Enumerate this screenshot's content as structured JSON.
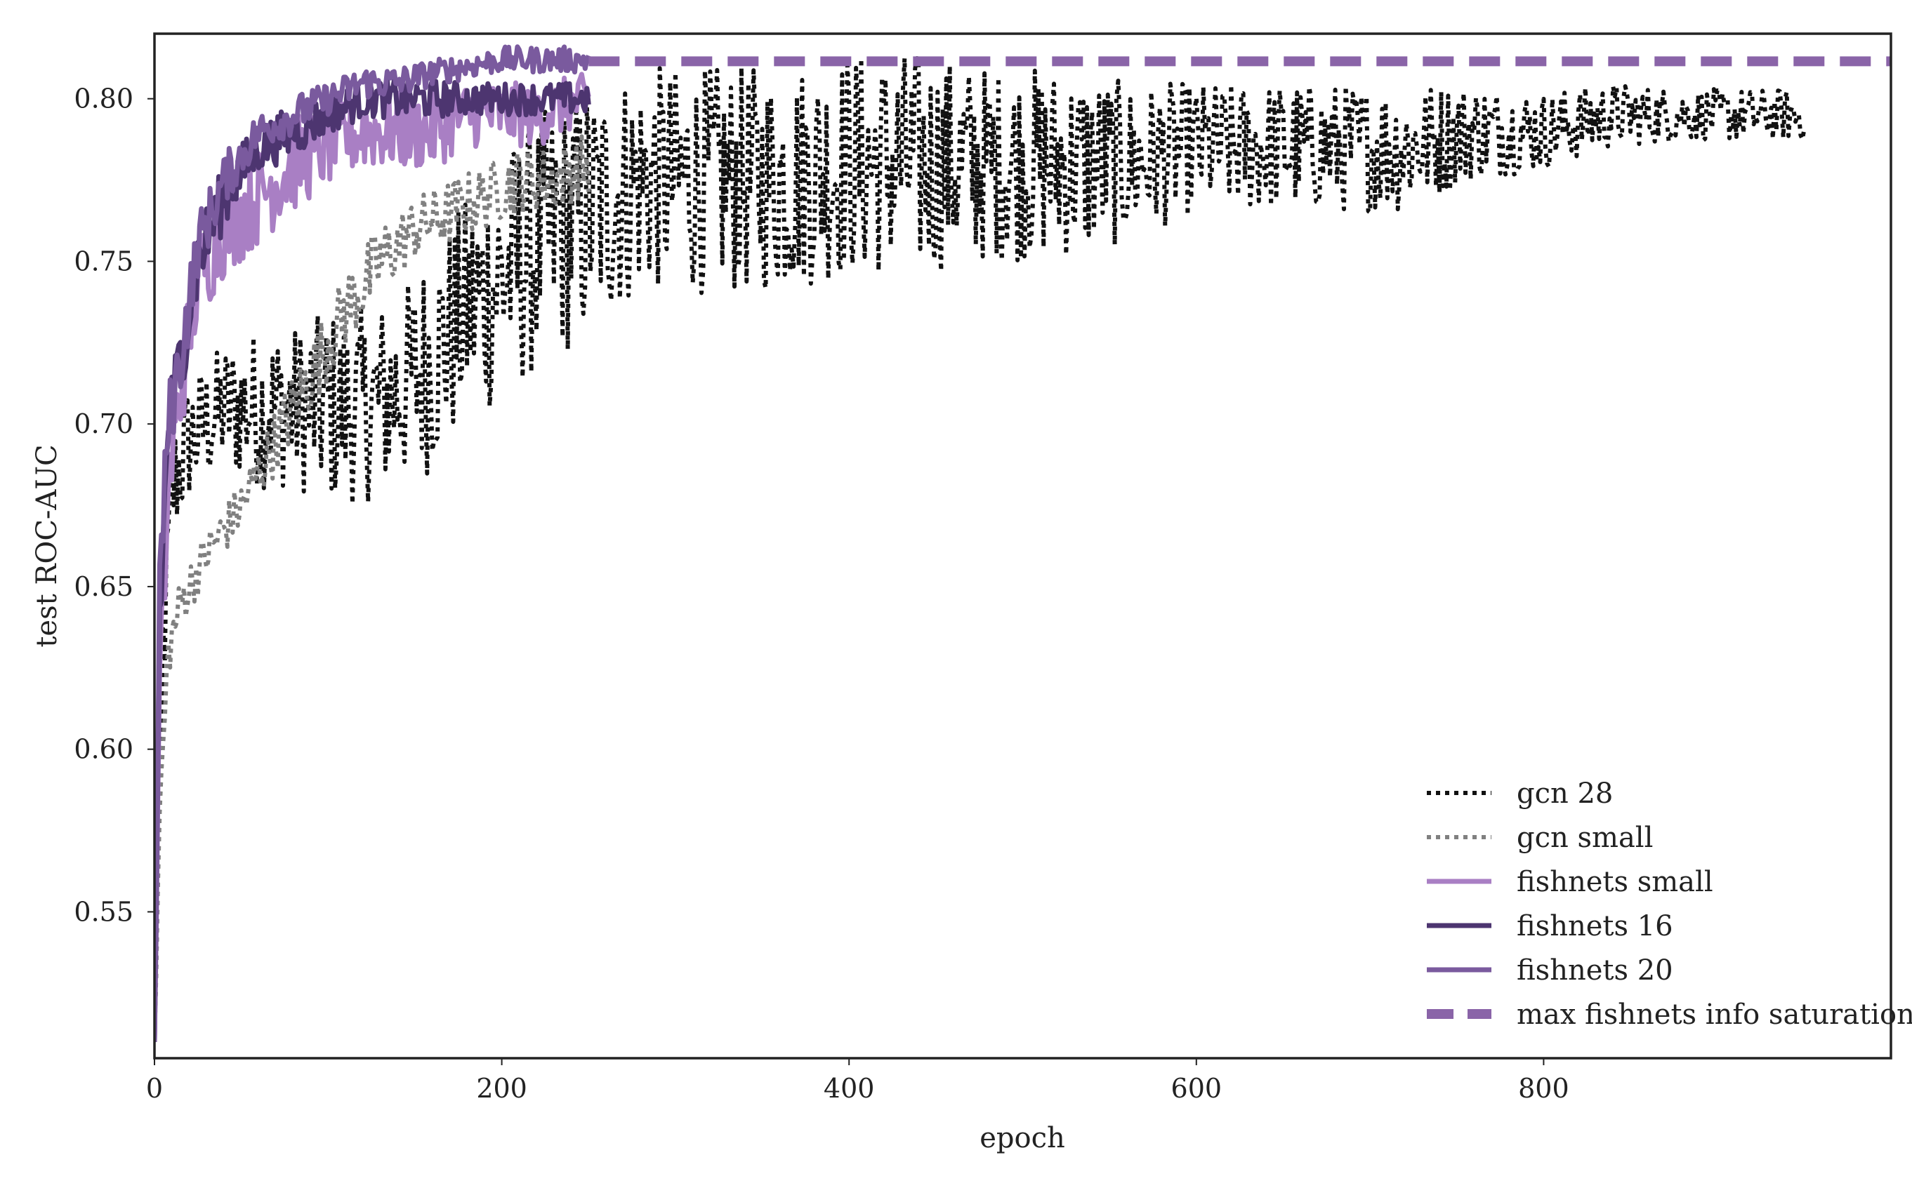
{
  "chart_data": {
    "type": "line",
    "xlabel": "epoch",
    "ylabel": "test ROC-AUC",
    "xlim": [
      0,
      1000
    ],
    "ylim": [
      0.505,
      0.82
    ],
    "xticks": [
      0,
      200,
      400,
      600,
      800
    ],
    "yticks": [
      0.55,
      0.6,
      0.65,
      0.7,
      0.75,
      0.8
    ],
    "xtick_labels": [
      "0",
      "200",
      "400",
      "600",
      "800"
    ],
    "ytick_labels": [
      "0.55",
      "0.60",
      "0.65",
      "0.70",
      "0.75",
      "0.80"
    ],
    "grid": false,
    "legend_position": "bottom-right",
    "series": [
      {
        "name": "gcn 28",
        "color": "#111111",
        "style": "dotted",
        "x": [
          0,
          5,
          10,
          20,
          40,
          60,
          80,
          100,
          120,
          140,
          160,
          180,
          200,
          220,
          250,
          280,
          320,
          360,
          400,
          440,
          480,
          520,
          560,
          600,
          640,
          680,
          720,
          760,
          800,
          840,
          880,
          920,
          950
        ],
        "y": [
          0.51,
          0.63,
          0.68,
          0.695,
          0.705,
          0.705,
          0.705,
          0.705,
          0.705,
          0.71,
          0.72,
          0.735,
          0.745,
          0.755,
          0.765,
          0.775,
          0.775,
          0.775,
          0.78,
          0.78,
          0.78,
          0.78,
          0.78,
          0.785,
          0.785,
          0.785,
          0.785,
          0.79,
          0.79,
          0.795,
          0.795,
          0.795,
          0.795
        ],
        "amp": [
          0.0,
          0.02,
          0.02,
          0.02,
          0.02,
          0.025,
          0.025,
          0.03,
          0.03,
          0.03,
          0.035,
          0.035,
          0.04,
          0.04,
          0.04,
          0.035,
          0.035,
          0.035,
          0.035,
          0.035,
          0.03,
          0.03,
          0.025,
          0.02,
          0.02,
          0.02,
          0.02,
          0.015,
          0.012,
          0.01,
          0.008,
          0.008,
          0.008
        ]
      },
      {
        "name": "gcn small",
        "color": "#808080",
        "style": "dotted",
        "x": [
          0,
          3,
          8,
          15,
          30,
          50,
          70,
          90,
          110,
          130,
          150,
          170,
          190,
          210,
          230,
          250
        ],
        "y": [
          0.51,
          0.58,
          0.63,
          0.645,
          0.66,
          0.675,
          0.695,
          0.715,
          0.735,
          0.75,
          0.76,
          0.765,
          0.77,
          0.775,
          0.775,
          0.78
        ],
        "amp": [
          0.0,
          0.01,
          0.008,
          0.008,
          0.008,
          0.008,
          0.01,
          0.012,
          0.012,
          0.012,
          0.01,
          0.01,
          0.01,
          0.01,
          0.01,
          0.01
        ]
      },
      {
        "name": "fishnets small",
        "color": "#a97fc4",
        "style": "solid",
        "x": [
          0,
          3,
          8,
          15,
          25,
          40,
          60,
          80,
          100,
          120,
          140,
          160,
          180,
          200,
          220,
          250
        ],
        "y": [
          0.51,
          0.62,
          0.68,
          0.71,
          0.745,
          0.76,
          0.77,
          0.78,
          0.785,
          0.79,
          0.79,
          0.79,
          0.795,
          0.795,
          0.795,
          0.8
        ],
        "amp": [
          0.0,
          0.015,
          0.015,
          0.015,
          0.015,
          0.015,
          0.015,
          0.015,
          0.012,
          0.012,
          0.012,
          0.012,
          0.01,
          0.01,
          0.01,
          0.008
        ]
      },
      {
        "name": "fishnets 16",
        "color": "#4d3570",
        "style": "solid",
        "x": [
          0,
          3,
          8,
          15,
          25,
          40,
          60,
          80,
          100,
          120,
          140,
          160,
          180,
          200,
          220,
          250
        ],
        "y": [
          0.51,
          0.64,
          0.7,
          0.72,
          0.75,
          0.77,
          0.785,
          0.79,
          0.795,
          0.8,
          0.8,
          0.8,
          0.8,
          0.8,
          0.8,
          0.8
        ],
        "amp": [
          0.0,
          0.015,
          0.012,
          0.012,
          0.012,
          0.01,
          0.008,
          0.008,
          0.006,
          0.006,
          0.006,
          0.006,
          0.005,
          0.005,
          0.005,
          0.005
        ]
      },
      {
        "name": "fishnets 20",
        "color": "#7a5a9e",
        "style": "solid",
        "x": [
          0,
          3,
          8,
          15,
          25,
          40,
          60,
          80,
          100,
          120,
          140,
          160,
          180,
          200,
          220,
          250
        ],
        "y": [
          0.51,
          0.65,
          0.7,
          0.72,
          0.755,
          0.775,
          0.79,
          0.795,
          0.8,
          0.805,
          0.805,
          0.808,
          0.81,
          0.812,
          0.812,
          0.812
        ],
        "amp": [
          0.0,
          0.015,
          0.012,
          0.012,
          0.01,
          0.008,
          0.006,
          0.006,
          0.005,
          0.005,
          0.005,
          0.004,
          0.004,
          0.004,
          0.004,
          0.004
        ]
      },
      {
        "name": "max fishnets info saturation",
        "color": "#8a64a8",
        "style": "dashed",
        "x": [
          250,
          1000
        ],
        "y": [
          0.8115,
          0.8115
        ]
      }
    ]
  }
}
